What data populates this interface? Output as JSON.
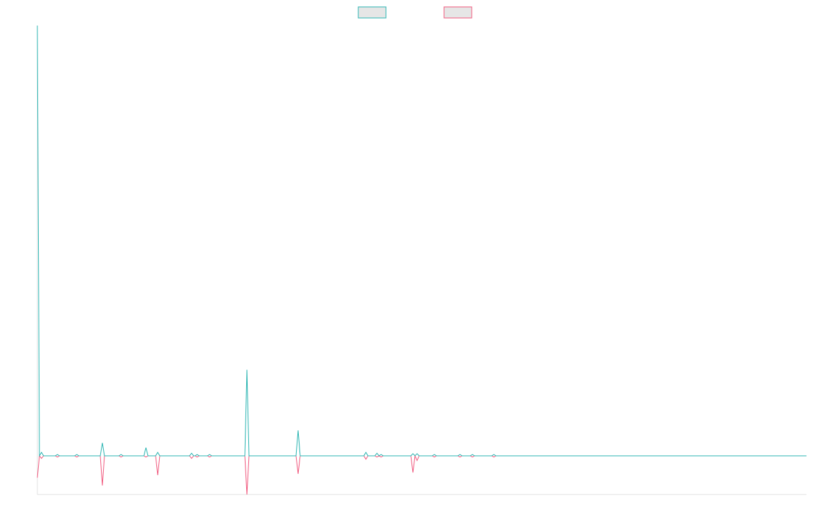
{
  "chart_data": {
    "type": "line",
    "x": [
      0,
      3,
      6,
      9,
      26,
      29,
      32,
      54,
      57,
      60,
      91,
      94,
      97,
      118,
      121,
      124,
      154,
      157,
      160,
      171,
      174,
      177,
      220,
      223,
      226,
      228,
      231,
      234,
      246,
      249,
      252,
      300,
      303,
      306,
      374,
      377,
      380,
      472,
      475,
      478,
      488,
      491,
      494,
      497,
      500,
      540,
      543,
      546,
      549,
      552,
      571,
      574,
      577,
      608,
      611,
      614,
      626,
      629,
      632,
      657,
      660,
      663,
      1112
    ],
    "xlim": [
      0,
      1112
    ],
    "ylim": [
      -9,
      100
    ],
    "series": [
      {
        "color": "#26b3b0",
        "values": [
          100,
          0,
          0.8,
          0,
          0,
          0.3,
          0,
          0,
          0.3,
          0,
          0,
          3.0,
          0,
          0,
          0.3,
          0,
          0,
          1.9,
          0,
          0,
          0.8,
          0,
          0,
          0.6,
          0,
          0,
          0.3,
          0,
          0,
          0.3,
          0,
          0,
          20,
          0,
          0,
          5.9,
          0,
          0,
          0.8,
          0,
          0,
          0.6,
          0,
          0.3,
          0,
          0,
          0.5,
          0,
          0.5,
          0,
          0,
          0.3,
          0,
          0,
          0.3,
          0,
          0,
          0.3,
          0,
          0,
          0.3,
          0,
          0
        ]
      },
      {
        "color": "#f0547a",
        "values": [
          -5.1,
          0,
          -0.6,
          0,
          0,
          -0.3,
          0,
          0,
          -0.3,
          0,
          0,
          -6.9,
          0,
          0,
          -0.3,
          0,
          0,
          -0.3,
          0,
          0,
          -4.5,
          0,
          0,
          -0.6,
          0,
          0,
          -0.3,
          0,
          0,
          -0.3,
          0,
          0,
          -9,
          0,
          0,
          -4.2,
          0,
          0,
          -0.8,
          0,
          0,
          -0.3,
          0,
          -0.3,
          0,
          0,
          -3.9,
          0,
          -1.1,
          0,
          0,
          -0.3,
          0,
          0,
          -0.3,
          0,
          0,
          -0.3,
          0,
          0,
          -0.3,
          0,
          0
        ]
      }
    ]
  }
}
